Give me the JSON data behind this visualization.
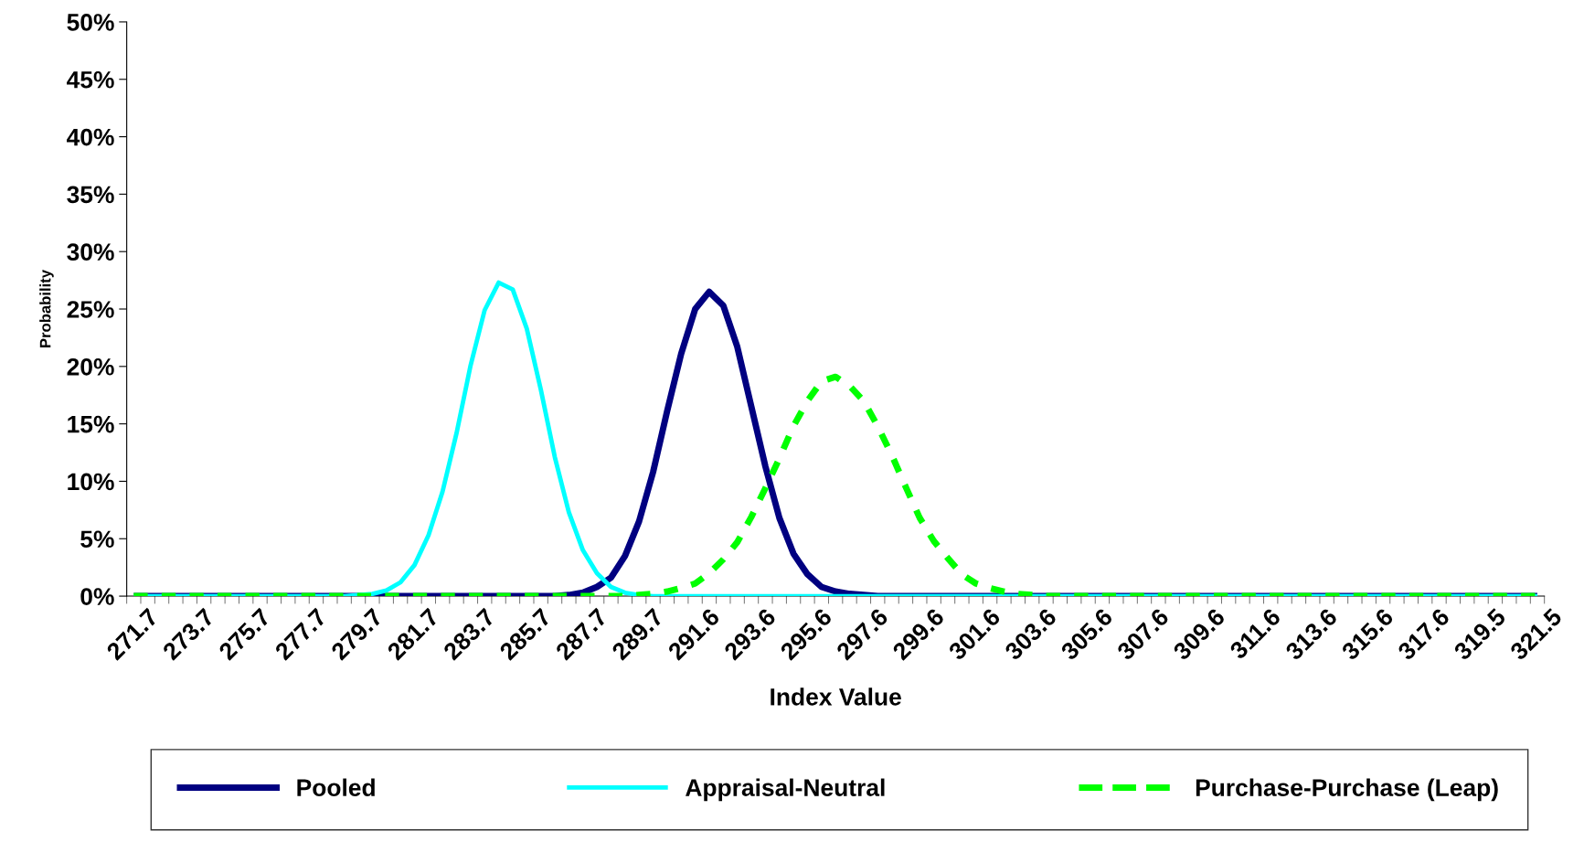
{
  "chart_data": {
    "type": "line",
    "xlabel": "Index Value",
    "ylabel": "Probability",
    "categories": [
      "271.7",
      null,
      null,
      null,
      "273.7",
      null,
      null,
      null,
      "275.7",
      null,
      null,
      null,
      "277.7",
      null,
      null,
      null,
      "279.7",
      null,
      null,
      null,
      "281.7",
      null,
      null,
      null,
      "283.7",
      null,
      null,
      null,
      "285.7",
      null,
      null,
      null,
      "287.7",
      null,
      null,
      null,
      "289.7",
      null,
      null,
      null,
      "291.6",
      null,
      null,
      null,
      "293.6",
      null,
      null,
      null,
      "295.6",
      null,
      null,
      null,
      "297.6",
      null,
      null,
      null,
      "299.6",
      null,
      null,
      null,
      "301.6",
      null,
      null,
      null,
      "303.6",
      null,
      null,
      null,
      "305.6",
      null,
      null,
      null,
      "307.6",
      null,
      null,
      null,
      "309.6",
      null,
      null,
      null,
      "311.6",
      null,
      null,
      null,
      "313.6",
      null,
      null,
      null,
      "315.6",
      null,
      null,
      null,
      "317.6",
      null,
      null,
      null,
      "319.5",
      null,
      null,
      null,
      "321.5"
    ],
    "series": [
      {
        "name": "Pooled",
        "color": "#000080",
        "line_style": "solid",
        "values": [
          0,
          0,
          0,
          0,
          0,
          0,
          0,
          0,
          0,
          0,
          0,
          0,
          0,
          0,
          0,
          0,
          0,
          0,
          0,
          0,
          0,
          0,
          0,
          0,
          0,
          0,
          0,
          0,
          0,
          0,
          0,
          0.1,
          0.3,
          0.8,
          1.6,
          3.5,
          6.5,
          10.8,
          16.1,
          21.1,
          25.0,
          26.5,
          25.3,
          21.7,
          16.5,
          11.3,
          6.8,
          3.7,
          1.9,
          0.8,
          0.4,
          0.2,
          0.1,
          0,
          0,
          0,
          0,
          0,
          0,
          0,
          0,
          0,
          0,
          0,
          0,
          0,
          0,
          0,
          0,
          0,
          0,
          0,
          0,
          0,
          0,
          0,
          0,
          0,
          0,
          0,
          0,
          0,
          0,
          0,
          0,
          0,
          0,
          0,
          0,
          0,
          0,
          0,
          0,
          0,
          0,
          0,
          0,
          0,
          0,
          0,
          0
        ]
      },
      {
        "name": "Appraisal-Neutral",
        "color": "#00ffff",
        "line_style": "solid",
        "values": [
          0,
          0,
          0,
          0,
          0,
          0,
          0,
          0,
          0,
          0,
          0,
          0,
          0,
          0,
          0,
          0,
          0.1,
          0.2,
          0.5,
          1.2,
          2.7,
          5.3,
          9.1,
          14.2,
          20.1,
          24.9,
          27.3,
          26.7,
          23.3,
          18.0,
          12.1,
          7.3,
          4.0,
          2.0,
          0.8,
          0.3,
          0.1,
          0,
          0,
          0,
          0,
          0,
          0,
          0,
          0,
          0,
          0,
          0,
          0,
          0,
          0,
          0,
          0,
          0,
          0,
          0,
          0,
          0,
          0,
          0,
          0,
          0,
          0,
          0,
          0,
          0,
          0,
          0,
          0,
          0,
          0,
          0,
          0,
          0,
          0,
          0,
          0,
          0,
          0,
          0,
          0,
          0,
          0,
          0,
          0,
          0,
          0,
          0,
          0,
          0,
          0,
          0,
          0,
          0,
          0,
          0,
          0,
          0,
          0,
          0,
          0
        ]
      },
      {
        "name": "Purchase-Purchase (Leap)",
        "color": "#00ff00",
        "line_style": "dashed",
        "values": [
          0,
          0,
          0,
          0,
          0,
          0,
          0,
          0,
          0,
          0,
          0,
          0,
          0,
          0,
          0,
          0,
          0,
          0,
          0,
          0,
          0,
          0,
          0,
          0,
          0,
          0,
          0,
          0,
          0,
          0,
          0,
          0,
          0,
          0,
          0,
          0,
          0.1,
          0.2,
          0.4,
          0.7,
          1.1,
          2.0,
          3.2,
          4.7,
          6.9,
          9.4,
          12.0,
          14.8,
          17.0,
          18.7,
          19.1,
          18.3,
          17.0,
          14.8,
          12.3,
          9.5,
          6.8,
          4.8,
          3.3,
          1.9,
          1.1,
          0.7,
          0.4,
          0.2,
          0.1,
          0,
          0,
          0,
          0,
          0,
          0,
          0,
          0,
          0,
          0,
          0,
          0,
          0,
          0,
          0,
          0,
          0,
          0,
          0,
          0,
          0,
          0,
          0,
          0,
          0,
          0,
          0,
          0,
          0,
          0,
          0,
          0,
          0,
          0,
          0,
          0
        ]
      }
    ],
    "ylim": [
      0,
      50
    ],
    "yticks": [
      {
        "value": 0,
        "label": "0%"
      },
      {
        "value": 5,
        "label": "5%"
      },
      {
        "value": 10,
        "label": "10%"
      },
      {
        "value": 15,
        "label": "15%"
      },
      {
        "value": 20,
        "label": "20%"
      },
      {
        "value": 25,
        "label": "25%"
      },
      {
        "value": 30,
        "label": "30%"
      },
      {
        "value": 35,
        "label": "35%"
      },
      {
        "value": 40,
        "label": "40%"
      },
      {
        "value": 45,
        "label": "45%"
      },
      {
        "value": 50,
        "label": "50%"
      }
    ],
    "grid": false,
    "legend": "bottom",
    "marker": "none"
  }
}
